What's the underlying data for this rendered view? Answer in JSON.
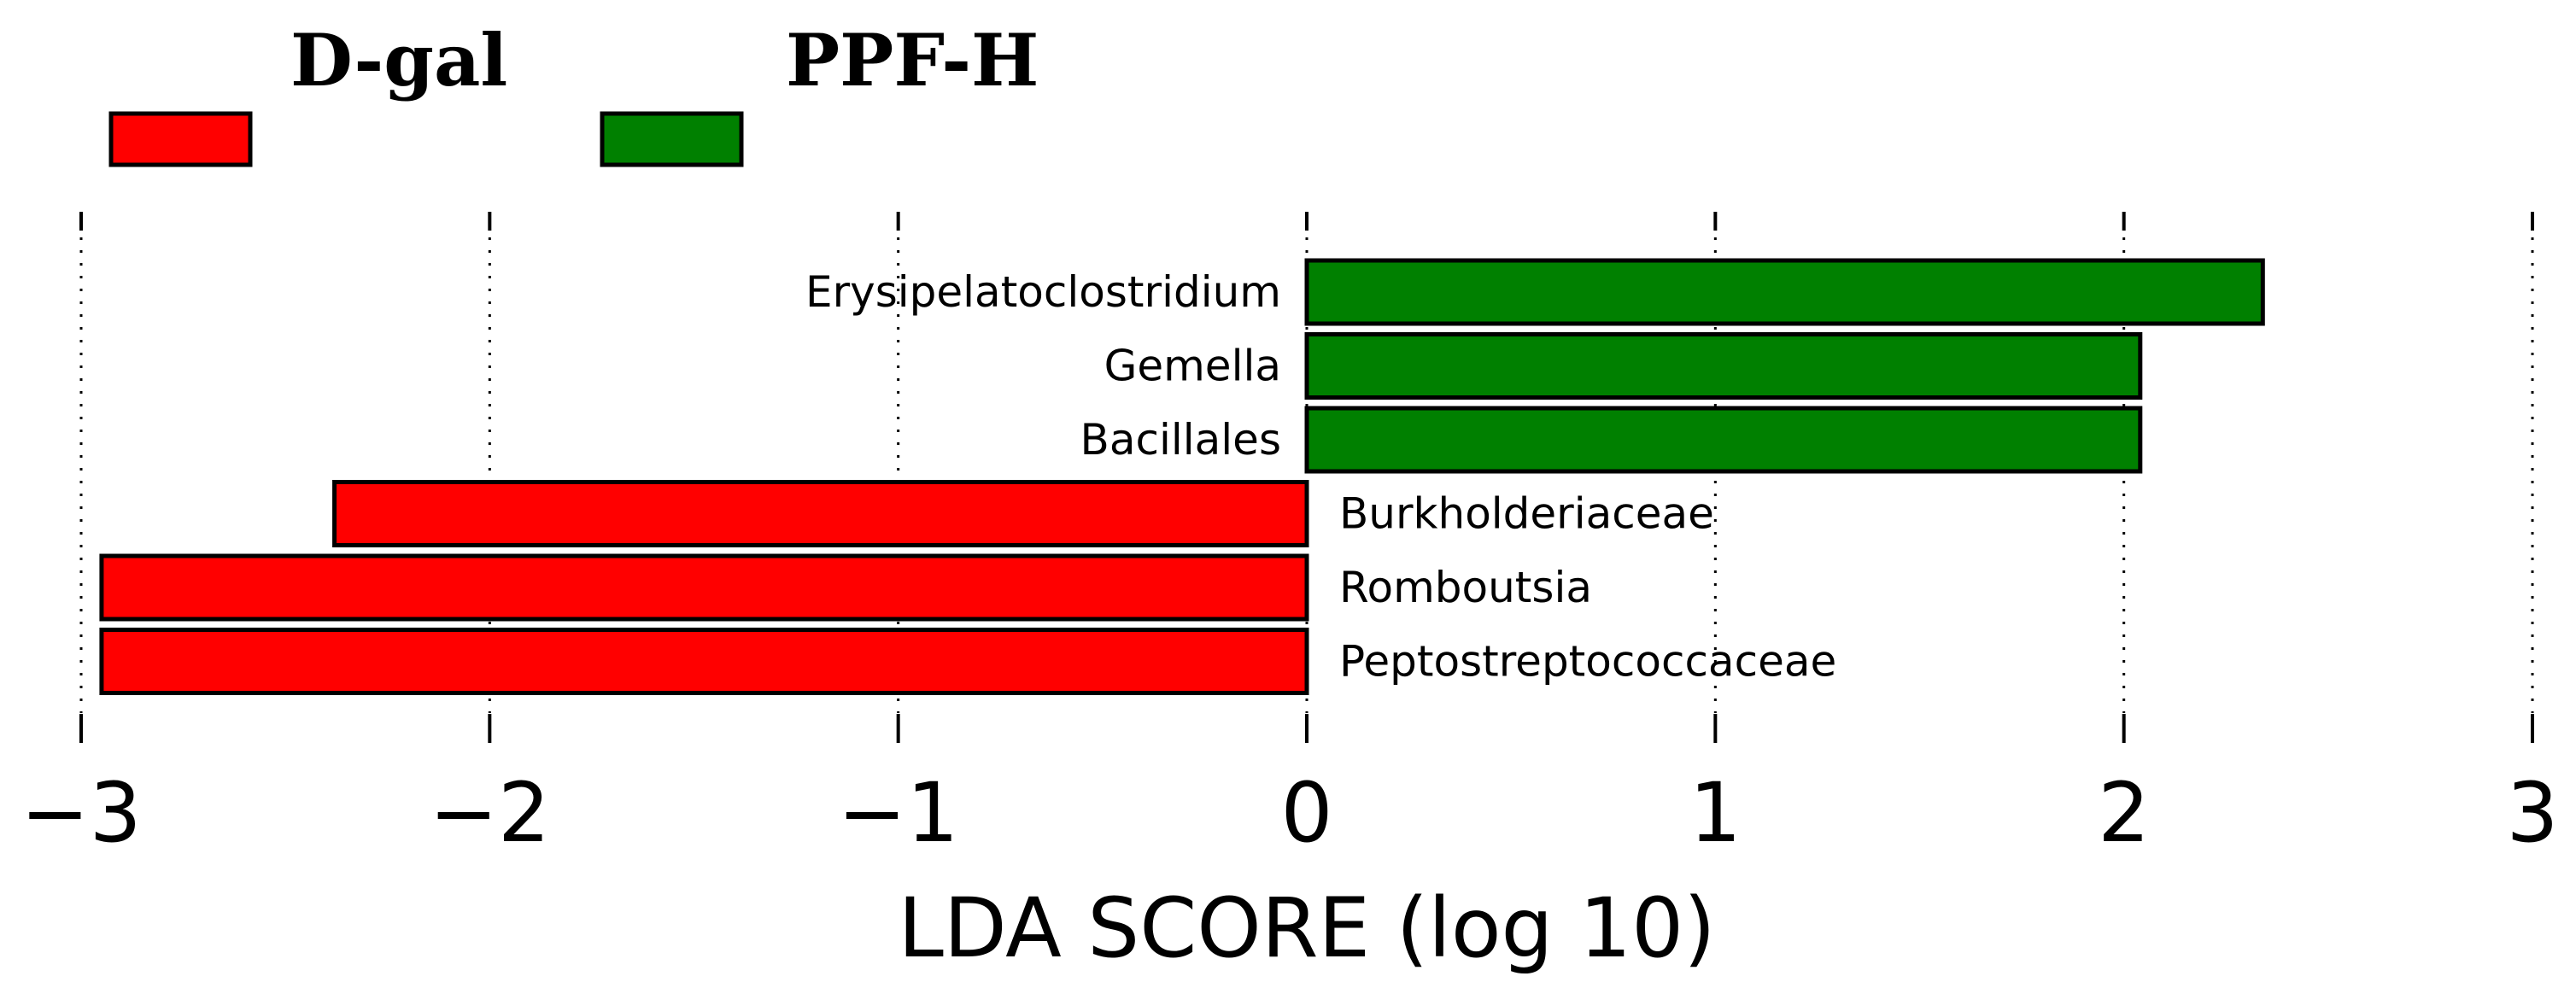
{
  "chart_data": {
    "type": "bar",
    "orientation": "horizontal",
    "legend": [
      {
        "label": "D-gal",
        "color": "#ff0000"
      },
      {
        "label": "PPF-H",
        "color": "#008000"
      }
    ],
    "categories": [
      "Erysipelatoclostridium",
      "Gemella",
      "Bacillales",
      "Burkholderiaceae",
      "Romboutsia",
      "Peptostreptococcaceae"
    ],
    "values": [
      2.34,
      2.04,
      2.04,
      -2.38,
      -2.95,
      -2.95
    ],
    "groups": [
      "PPF-H",
      "PPF-H",
      "PPF-H",
      "D-gal",
      "D-gal",
      "D-gal"
    ],
    "xlabel": "LDA SCORE (log 10)",
    "xlim": [
      -3,
      3
    ],
    "xticks": [
      -3,
      -2,
      -1,
      0,
      1,
      2,
      3
    ],
    "xtick_labels": [
      "−3",
      "−2",
      "−1",
      "0",
      "1",
      "2",
      "3"
    ],
    "grid": "vertical dotted",
    "legend_position": "top-left"
  }
}
